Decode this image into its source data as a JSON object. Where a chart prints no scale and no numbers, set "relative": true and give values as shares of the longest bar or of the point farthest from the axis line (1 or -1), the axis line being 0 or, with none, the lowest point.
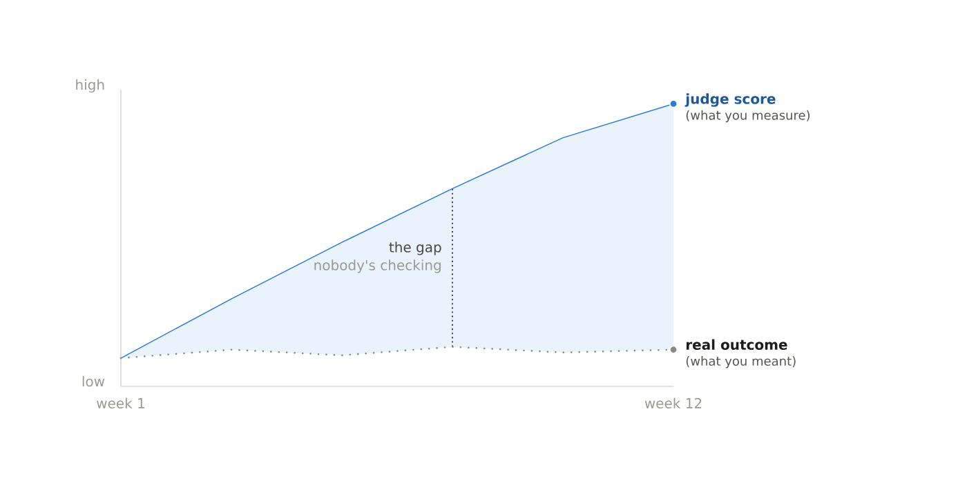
{
  "chart_data": {
    "type": "line",
    "relative": true,
    "categories": [
      "week 1",
      null,
      null,
      null,
      null,
      "week 12"
    ],
    "series": [
      {
        "name": "judge score",
        "type": "area",
        "color": "#2b7bd6",
        "values": [
          0.1,
          0.31,
          0.51,
          0.7,
          0.88,
          1.0
        ]
      },
      {
        "name": "real outcome",
        "color": "#8a8a85",
        "line_style": "dotted",
        "values": [
          0.1,
          0.13,
          0.11,
          0.14,
          0.12,
          0.13
        ]
      }
    ],
    "annotations": [
      "high",
      "low",
      "the gap",
      "nobody's checking",
      {
        "text": "(what you measure)",
        "x": "week 12",
        "y": 1.0
      },
      {
        "text": "(what you meant)",
        "x": "week 12",
        "y": 0.13
      }
    ]
  }
}
